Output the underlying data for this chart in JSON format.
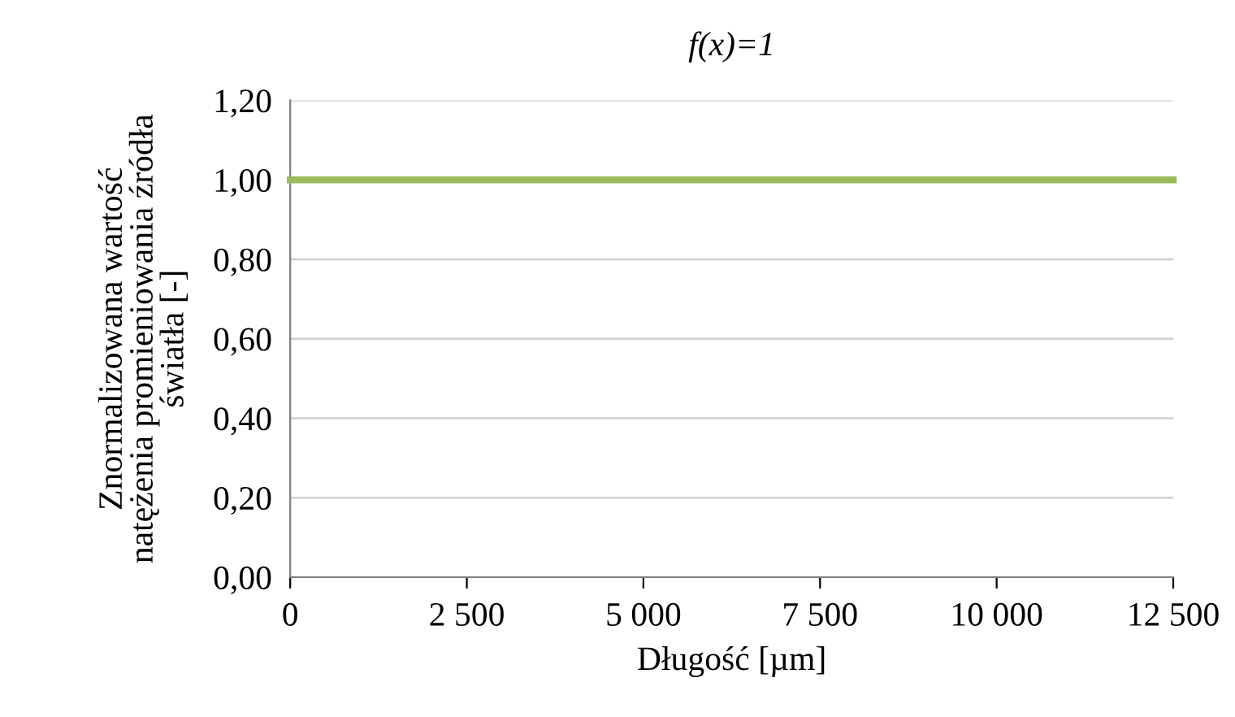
{
  "chart_data": {
    "type": "line",
    "title": "f(x)=1",
    "xlabel": "Długość [µm]",
    "ylabel": "Znormalizowana wartość\nnatężenia promieniowania źródła\nświatła [-]",
    "x": [
      0,
      12500
    ],
    "series": [
      {
        "color": "#9bbb59",
        "values": [
          1,
          1
        ]
      }
    ],
    "xlim": [
      0,
      12500
    ],
    "xticks": [
      0,
      {
        "value": 2500,
        "label": "2 500"
      },
      {
        "value": 5000,
        "label": "5 000"
      },
      {
        "value": 7500,
        "label": "7 500"
      },
      {
        "value": 10000,
        "label": "10 000"
      },
      {
        "value": 12500,
        "label": "12 500"
      }
    ],
    "ylim": [
      0,
      1.2
    ],
    "yticks": [
      {
        "value": 0,
        "label": "0,00"
      },
      {
        "value": 0.2,
        "label": "0,20"
      },
      {
        "value": 0.4,
        "label": "0,40"
      },
      {
        "value": 0.6,
        "label": "0,60"
      },
      {
        "value": 0.8,
        "label": "0,80"
      },
      {
        "value": 1.0,
        "label": "1,00"
      },
      {
        "value": 1.2,
        "label": "1,20"
      }
    ],
    "grid": "y",
    "marker": "none",
    "line_style": "solid"
  }
}
